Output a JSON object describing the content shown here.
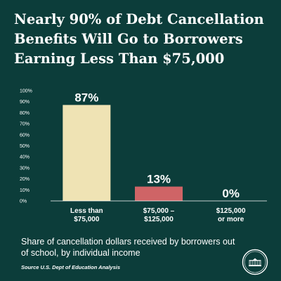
{
  "title": "Nearly 90% of Debt Cancellation Benefits Will Go to Borrowers Earning Less Than $75,000",
  "caption": "Share of cancellation dollars received by borrowers out of school, by individual income",
  "source": "Source U.S. Dept of Education Analysis",
  "colors": {
    "background": "#0c3d3a",
    "bar_low": "#efe3b4",
    "bar_mid": "#cf6466",
    "axis": "#ffffff"
  },
  "chart_data": {
    "type": "bar",
    "categories": [
      "Less than\n$75,000",
      "$75,000 –\n$125,000",
      "$125,000\nor more"
    ],
    "values": [
      87,
      13,
      0
    ],
    "data_labels": [
      "87%",
      "13%",
      "0%"
    ],
    "bar_colors": [
      "#efe3b4",
      "#cf6466",
      "#cf6466"
    ],
    "yticks": [
      "0%",
      "10%",
      "20%",
      "30%",
      "40%",
      "50%",
      "60%",
      "70%",
      "80%",
      "90%",
      "100%"
    ],
    "ylim": [
      0,
      100
    ],
    "grid": false,
    "title": "",
    "xlabel": "",
    "ylabel": ""
  }
}
